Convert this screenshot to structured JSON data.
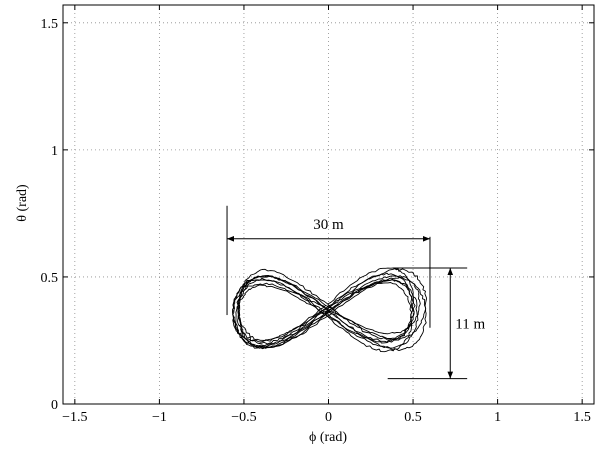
{
  "chart_data": {
    "type": "line",
    "title": "",
    "xlabel": "ϕ (rad)",
    "ylabel": "θ (rad)",
    "xlim": [
      -1.57,
      1.57
    ],
    "ylim": [
      0,
      1.57
    ],
    "grid": true,
    "x_ticks": [
      -1.5,
      -1,
      -0.5,
      0,
      0.5,
      1,
      1.5
    ],
    "x_tick_labels": [
      "−1.5",
      "−1",
      "−0.5",
      "0",
      "0.5",
      "1",
      "1.5"
    ],
    "y_ticks": [
      0,
      0.5,
      1,
      1.5
    ],
    "y_tick_labels": [
      "0",
      "0.5",
      "1",
      "1.5"
    ],
    "figure_eight": {
      "center": [
        0,
        0.37
      ],
      "half_width_phi": 0.55,
      "half_height_theta": 0.13,
      "loops": 8
    },
    "annotations": {
      "width": {
        "label": "30 m",
        "phi_from": -0.6,
        "phi_to": 0.6,
        "theta": 0.65
      },
      "height": {
        "label": "11 m",
        "theta_from": 0.1,
        "theta_to": 0.535,
        "phi": 0.72
      }
    }
  }
}
